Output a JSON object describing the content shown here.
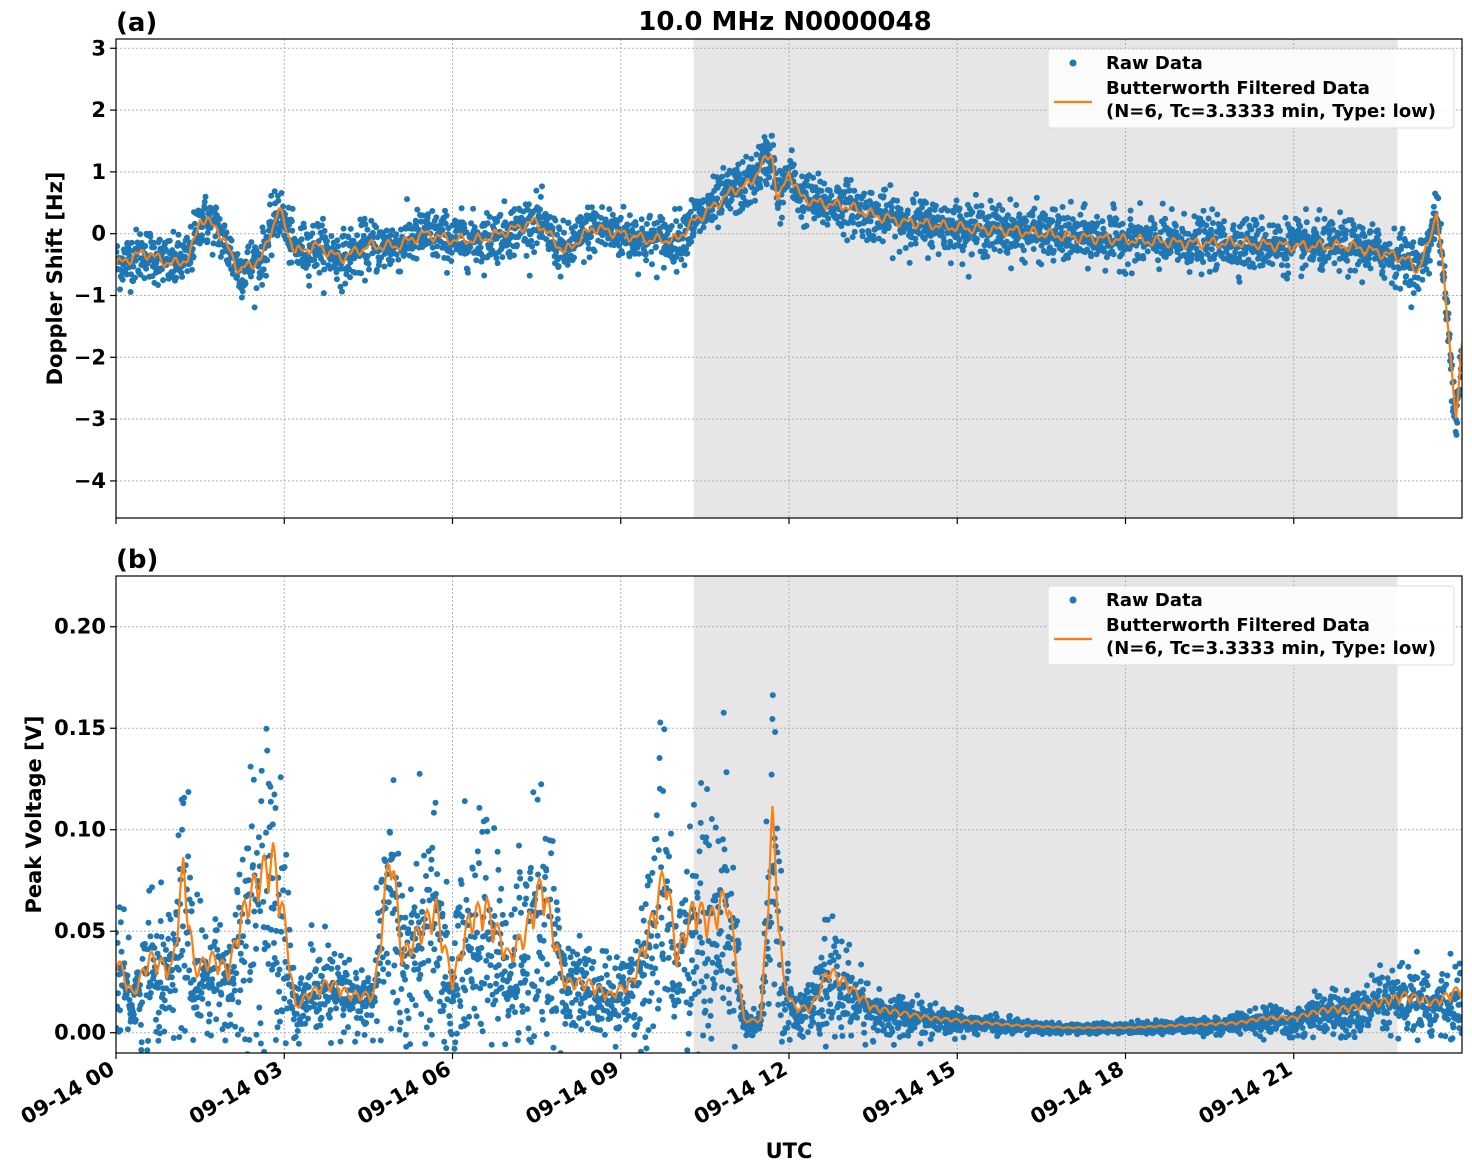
{
  "title": "10.0 MHz N0000048",
  "xlabel": "UTC",
  "colors": {
    "raw": "#1f77b4",
    "filtered": "#ff7f0e",
    "shade": "#e6e6e6",
    "grid": "#b0b0b0"
  },
  "x_axis": {
    "range_hours": [
      0,
      24
    ],
    "ticks": [
      {
        "hour": 0,
        "label": "09-14 00"
      },
      {
        "hour": 3,
        "label": "09-14 03"
      },
      {
        "hour": 6,
        "label": "09-14 06"
      },
      {
        "hour": 9,
        "label": "09-14 09"
      },
      {
        "hour": 12,
        "label": "09-14 12"
      },
      {
        "hour": 15,
        "label": "09-14 15"
      },
      {
        "hour": 18,
        "label": "09-14 18"
      },
      {
        "hour": 21,
        "label": "09-14 21"
      }
    ]
  },
  "legend": {
    "raw_label": "Raw Data",
    "filtered_line1": "Butterworth Filtered Data",
    "filtered_line2": "(N=6, Tc=3.3333 min, Type: low)"
  },
  "chart_data": [
    {
      "type": "scatter",
      "panel_label": "(a)",
      "ylabel": "Doppler Shift [Hz]",
      "ylim": [
        -4.6,
        3.15
      ],
      "grid": true,
      "legend_position": "top-right",
      "yticks": [
        {
          "value": 3,
          "label": "3"
        },
        {
          "value": 2,
          "label": "2"
        },
        {
          "value": 1,
          "label": "1"
        },
        {
          "value": 0,
          "label": "0"
        },
        {
          "value": -1,
          "label": "−1"
        },
        {
          "value": -2,
          "label": "−2"
        },
        {
          "value": -3,
          "label": "−3"
        },
        {
          "value": -4,
          "label": "−4"
        }
      ],
      "shaded_hours": [
        10.3,
        22.85
      ],
      "series": [
        {
          "name": "Raw Data",
          "spread": 0.38
        },
        {
          "name": "Butterworth Filtered Data (N=6, Tc=3.3333 min, Type: low)",
          "x": [
            0,
            0.5,
            1.0,
            1.3,
            1.5,
            1.8,
            2.2,
            2.6,
            2.9,
            3.2,
            3.6,
            4.0,
            4.5,
            5.0,
            5.5,
            6.0,
            6.5,
            7.0,
            7.5,
            8.0,
            8.5,
            9.0,
            9.5,
            10.0,
            10.3,
            10.6,
            11.0,
            11.3,
            11.5,
            11.7,
            11.8,
            12.0,
            12.2,
            12.5,
            13.0,
            13.5,
            14.0,
            15.0,
            16.0,
            17.0,
            18.0,
            19.0,
            20.0,
            21.0,
            22.0,
            22.5,
            23.0,
            23.2,
            23.4,
            23.55,
            23.65,
            23.8,
            23.9,
            24.0
          ],
          "y": [
            -0.5,
            -0.3,
            -0.5,
            -0.4,
            0.25,
            0.1,
            -0.6,
            -0.4,
            0.4,
            -0.3,
            -0.2,
            -0.4,
            -0.2,
            -0.2,
            0.0,
            -0.1,
            -0.1,
            0.05,
            0.2,
            -0.3,
            0.1,
            0.0,
            -0.1,
            -0.1,
            0.2,
            0.4,
            0.7,
            0.8,
            1.1,
            1.3,
            0.5,
            1.0,
            0.6,
            0.5,
            0.45,
            0.3,
            0.2,
            0.1,
            0.05,
            -0.05,
            -0.1,
            -0.15,
            -0.15,
            -0.2,
            -0.2,
            -0.3,
            -0.4,
            -0.6,
            -0.2,
            0.4,
            -0.5,
            -2.0,
            -3.0,
            -1.8
          ]
        }
      ]
    },
    {
      "type": "scatter",
      "panel_label": "(b)",
      "ylabel": "Peak Voltage [V]",
      "ylim": [
        -0.01,
        0.225
      ],
      "grid": true,
      "legend_position": "top-right",
      "yticks": [
        {
          "value": 0.2,
          "label": "0.20"
        },
        {
          "value": 0.15,
          "label": "0.15"
        },
        {
          "value": 0.1,
          "label": "0.10"
        },
        {
          "value": 0.05,
          "label": "0.05"
        },
        {
          "value": 0.0,
          "label": "0.00"
        }
      ],
      "shaded_hours": [
        10.3,
        22.85
      ],
      "series": [
        {
          "name": "Raw Data",
          "spread": 0.6
        },
        {
          "name": "Butterworth Filtered Data (N=6, Tc=3.3333 min, Type: low)",
          "x": [
            0,
            0.3,
            0.6,
            1.0,
            1.2,
            1.4,
            1.7,
            2.0,
            2.3,
            2.5,
            2.8,
            3.0,
            3.2,
            3.4,
            3.8,
            4.2,
            4.6,
            4.9,
            5.1,
            5.4,
            5.7,
            6.0,
            6.3,
            6.6,
            7.0,
            7.3,
            7.6,
            8.0,
            8.4,
            8.8,
            9.2,
            9.5,
            9.8,
            10.0,
            10.3,
            10.6,
            10.9,
            11.2,
            11.5,
            11.7,
            11.9,
            12.1,
            12.4,
            12.7,
            13.0,
            13.5,
            14.0,
            14.5,
            15.0,
            16.0,
            17.0,
            18.0,
            19.0,
            20.0,
            20.5,
            21.0,
            21.5,
            22.0,
            22.5,
            23.0,
            23.5,
            24.0
          ],
          "y": [
            0.03,
            0.015,
            0.03,
            0.025,
            0.065,
            0.025,
            0.03,
            0.025,
            0.05,
            0.06,
            0.07,
            0.045,
            0.01,
            0.015,
            0.02,
            0.015,
            0.015,
            0.075,
            0.03,
            0.04,
            0.05,
            0.02,
            0.045,
            0.05,
            0.03,
            0.04,
            0.06,
            0.02,
            0.02,
            0.015,
            0.02,
            0.04,
            0.065,
            0.03,
            0.05,
            0.045,
            0.055,
            0.005,
            0.005,
            0.085,
            0.02,
            0.01,
            0.01,
            0.025,
            0.02,
            0.01,
            0.008,
            0.006,
            0.005,
            0.003,
            0.002,
            0.002,
            0.003,
            0.004,
            0.006,
            0.006,
            0.009,
            0.01,
            0.012,
            0.015,
            0.012,
            0.018
          ]
        }
      ]
    }
  ]
}
